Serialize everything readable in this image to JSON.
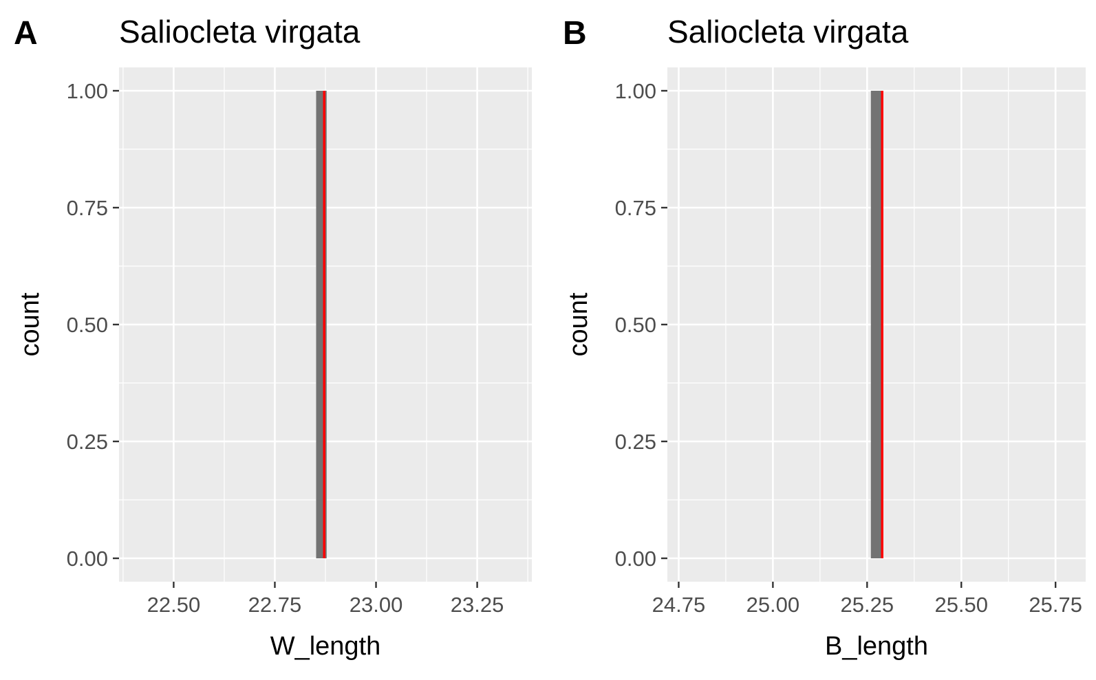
{
  "colors": {
    "panel_background": "#ebebeb",
    "grid": "#ffffff",
    "bar_fill": "#737373",
    "mean_line": "#ff0000",
    "tick_text": "#4d4d4d"
  },
  "chart_data": [
    {
      "type": "bar",
      "label": "A",
      "title": "Saliocleta virgata",
      "xlabel": "W_length",
      "ylabel": "count",
      "xlim": [
        22.365,
        23.385
      ],
      "ylim": [
        -0.05,
        1.05
      ],
      "x_ticks": [
        22.5,
        22.75,
        23.0,
        23.25
      ],
      "x_tick_labels": [
        "22.50",
        "22.75",
        "23.00",
        "23.25"
      ],
      "y_ticks": [
        0,
        0.25,
        0.5,
        0.75,
        1.0
      ],
      "y_tick_labels": [
        "0.00",
        "0.25",
        "0.50",
        "0.75",
        "1.00"
      ],
      "bins": [
        {
          "x_start": 22.852,
          "x_end": 22.878,
          "count": 1
        }
      ],
      "vline": {
        "x": 22.872,
        "color": "#ff0000"
      },
      "grid": true,
      "legend": "none"
    },
    {
      "type": "bar",
      "label": "B",
      "title": "Saliocleta virgata",
      "xlabel": "B_length",
      "ylabel": "count",
      "xlim": [
        24.72,
        25.83
      ],
      "ylim": [
        -0.05,
        1.05
      ],
      "x_ticks": [
        24.75,
        25.0,
        25.25,
        25.5,
        25.75
      ],
      "x_tick_labels": [
        "24.75",
        "25.00",
        "25.25",
        "25.50",
        "25.75"
      ],
      "y_ticks": [
        0,
        0.25,
        0.5,
        0.75,
        1.0
      ],
      "y_tick_labels": [
        "0.00",
        "0.25",
        "0.50",
        "0.75",
        "1.00"
      ],
      "bins": [
        {
          "x_start": 25.26,
          "x_end": 25.29,
          "count": 1
        }
      ],
      "vline": {
        "x": 25.29,
        "color": "#ff0000"
      },
      "grid": true,
      "legend": "none"
    }
  ]
}
